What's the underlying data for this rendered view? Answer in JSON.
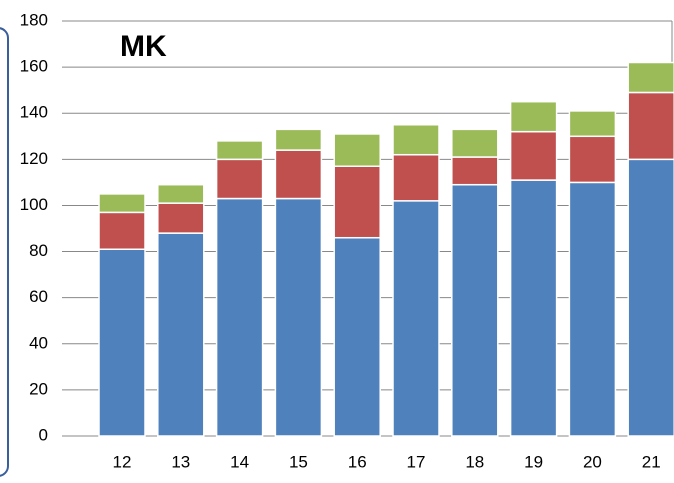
{
  "chart_data": {
    "type": "bar",
    "stacked": true,
    "title": "MK",
    "categories": [
      "12",
      "13",
      "14",
      "15",
      "16",
      "17",
      "18",
      "19",
      "20",
      "21"
    ],
    "series": [
      {
        "color": "#4f81bd",
        "values": [
          81,
          88,
          103,
          103,
          86,
          102,
          109,
          111,
          110,
          120
        ]
      },
      {
        "color": "#c0504d",
        "values": [
          16,
          13,
          17,
          21,
          31,
          20,
          12,
          21,
          20,
          29
        ]
      },
      {
        "color": "#9bbb59",
        "values": [
          8,
          8,
          8,
          9,
          14,
          13,
          12,
          13,
          11,
          13
        ]
      }
    ],
    "ylim": [
      0,
      180
    ],
    "yticks": [
      0,
      20,
      40,
      60,
      80,
      100,
      120,
      140,
      160,
      180
    ],
    "grid": true
  }
}
